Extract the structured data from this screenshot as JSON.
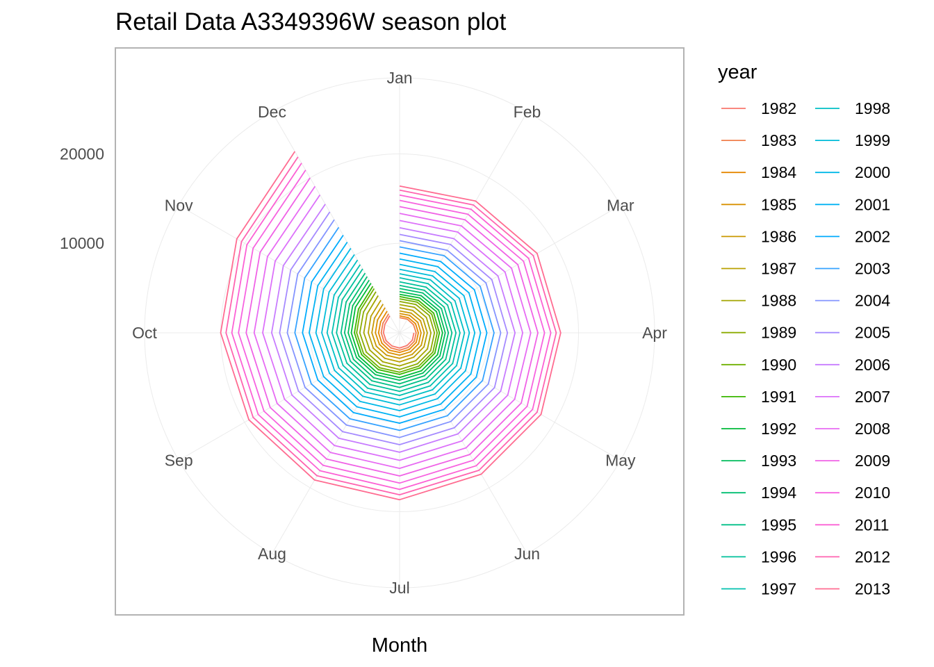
{
  "chart_data": {
    "type": "line",
    "coord": "polar",
    "title": "Retail Data A3349396W season plot",
    "xlabel": "Month",
    "ylabel": "",
    "categories": [
      "Jan",
      "Feb",
      "Mar",
      "Apr",
      "May",
      "Jun",
      "Jul",
      "Aug",
      "Sep",
      "Oct",
      "Nov",
      "Dec"
    ],
    "r_ticks": [
      10000,
      20000
    ],
    "r_tick_labels": [
      "10000",
      "20000"
    ],
    "rlim": [
      0,
      28500
    ],
    "grid": true,
    "legend": {
      "title": "year",
      "position": "right",
      "columns": 2
    },
    "series": [
      {
        "name": "1982",
        "color": "#F8766D",
        "values": [
          null,
          null,
          null,
          1600,
          1650,
          1650,
          1700,
          1700,
          1750,
          1800,
          1900,
          2200
        ]
      },
      {
        "name": "1983",
        "color": "#F07E4C",
        "values": [
          1700,
          1750,
          1800,
          1850,
          1900,
          1900,
          1950,
          1950,
          2000,
          2050,
          2150,
          2450
        ]
      },
      {
        "name": "1984",
        "color": "#E58700",
        "values": [
          1900,
          1950,
          2050,
          2100,
          2150,
          2150,
          2200,
          2250,
          2300,
          2350,
          2450,
          2800
        ]
      },
      {
        "name": "1985",
        "color": "#D89000",
        "values": [
          2150,
          2250,
          2350,
          2400,
          2450,
          2450,
          2500,
          2550,
          2600,
          2700,
          2850,
          3250
        ]
      },
      {
        "name": "1986",
        "color": "#C99800",
        "values": [
          2450,
          2550,
          2700,
          2750,
          2800,
          2800,
          2850,
          2900,
          3000,
          3100,
          3250,
          3700
        ]
      },
      {
        "name": "1987",
        "color": "#B9A000",
        "values": [
          2800,
          2900,
          3050,
          3100,
          3150,
          3150,
          3250,
          3300,
          3400,
          3500,
          3700,
          4200
        ]
      },
      {
        "name": "1988",
        "color": "#A3A500",
        "values": [
          3150,
          3300,
          3450,
          3500,
          3600,
          3600,
          3700,
          3750,
          3850,
          4000,
          4200,
          4800
        ]
      },
      {
        "name": "1989",
        "color": "#8BAB00",
        "values": [
          3500,
          3650,
          3850,
          3900,
          4000,
          4000,
          4100,
          4150,
          4300,
          4450,
          4650,
          5300
        ]
      },
      {
        "name": "1990",
        "color": "#6FB000",
        "values": [
          3800,
          3950,
          4150,
          4200,
          4300,
          4300,
          4400,
          4500,
          4650,
          4800,
          5050,
          5700
        ]
      },
      {
        "name": "1991",
        "color": "#39B600",
        "values": [
          4050,
          4200,
          4400,
          4450,
          4550,
          4550,
          4650,
          4750,
          4900,
          5050,
          5300,
          6000
        ]
      },
      {
        "name": "1992",
        "color": "#00BA38",
        "values": [
          4300,
          4500,
          4750,
          4800,
          4900,
          4900,
          5000,
          5100,
          5250,
          5400,
          5700,
          6400
        ]
      },
      {
        "name": "1993",
        "color": "#00BC5B",
        "values": [
          4600,
          4800,
          5050,
          5100,
          5200,
          5200,
          5300,
          5400,
          5550,
          5750,
          6050,
          6800
        ]
      },
      {
        "name": "1994",
        "color": "#00BE72",
        "values": [
          4950,
          5150,
          5400,
          5450,
          5550,
          5550,
          5700,
          5800,
          5950,
          6150,
          6450,
          7250
        ]
      },
      {
        "name": "1995",
        "color": "#00BF87",
        "values": [
          5300,
          5500,
          5750,
          5850,
          5950,
          5950,
          6100,
          6200,
          6350,
          6550,
          6900,
          7700
        ]
      },
      {
        "name": "1996",
        "color": "#00C09B",
        "values": [
          5700,
          5900,
          6200,
          6300,
          6400,
          6400,
          6550,
          6650,
          6800,
          7050,
          7400,
          8250
        ]
      },
      {
        "name": "1997",
        "color": "#00C0AF",
        "values": [
          6150,
          6350,
          6650,
          6750,
          6850,
          6850,
          7000,
          7150,
          7300,
          7550,
          7900,
          8800
        ]
      },
      {
        "name": "1998",
        "color": "#00BFC4",
        "values": [
          6600,
          6850,
          7150,
          7250,
          7350,
          7350,
          7500,
          7650,
          7850,
          8100,
          8450,
          9400
        ]
      },
      {
        "name": "1999",
        "color": "#00BCD8",
        "values": [
          7100,
          7350,
          7700,
          7800,
          7900,
          7900,
          8050,
          8200,
          8400,
          8700,
          9100,
          10100
        ]
      },
      {
        "name": "2000",
        "color": "#00B8E7",
        "values": [
          7650,
          7900,
          8300,
          8400,
          8500,
          8500,
          8700,
          8850,
          9050,
          9350,
          9800,
          10900
        ]
      },
      {
        "name": "2001",
        "color": "#00B2F3",
        "values": [
          8250,
          8550,
          8950,
          9050,
          9200,
          9200,
          9400,
          9550,
          9800,
          10100,
          10550,
          11700
        ]
      },
      {
        "name": "2002",
        "color": "#00ABFD",
        "values": [
          8900,
          9200,
          9650,
          9750,
          9900,
          9900,
          10100,
          10300,
          10550,
          10850,
          11350,
          12600
        ]
      },
      {
        "name": "2003",
        "color": "#35A2FF",
        "values": [
          9600,
          9950,
          10400,
          10550,
          10700,
          10700,
          10900,
          11100,
          11400,
          11700,
          12250,
          13600
        ]
      },
      {
        "name": "2004",
        "color": "#8494FF",
        "values": [
          10300,
          10650,
          11150,
          11300,
          11450,
          11450,
          11700,
          11900,
          12200,
          12550,
          13150,
          14600
        ]
      },
      {
        "name": "2005",
        "color": "#A58AFF",
        "values": [
          11000,
          11400,
          11900,
          12050,
          12250,
          12250,
          12500,
          12750,
          13050,
          13400,
          14050,
          15600
        ]
      },
      {
        "name": "2006",
        "color": "#C77CFF",
        "values": [
          11750,
          12150,
          12700,
          12900,
          13050,
          13050,
          13350,
          13600,
          13900,
          14300,
          15000,
          16600
        ]
      },
      {
        "name": "2007",
        "color": "#DC71FA",
        "values": [
          12550,
          13000,
          13600,
          13750,
          13950,
          13950,
          14250,
          14550,
          14850,
          15300,
          16050,
          17800
        ]
      },
      {
        "name": "2008",
        "color": "#E76BF3",
        "values": [
          13350,
          13800,
          14450,
          14650,
          14850,
          14850,
          15150,
          15450,
          15800,
          16250,
          17050,
          18900
        ]
      },
      {
        "name": "2009",
        "color": "#F062E6",
        "values": [
          14100,
          14600,
          15250,
          15450,
          15700,
          15700,
          16000,
          16300,
          16700,
          17150,
          18000,
          20000
        ]
      },
      {
        "name": "2010",
        "color": "#F763E0",
        "values": [
          14800,
          15300,
          16000,
          16200,
          16450,
          16450,
          16800,
          17100,
          17500,
          18000,
          18900,
          21000
        ]
      },
      {
        "name": "2011",
        "color": "#FC61D5",
        "values": [
          15400,
          15950,
          16650,
          16900,
          17150,
          17150,
          17500,
          17800,
          18250,
          18750,
          19700,
          21900
        ]
      },
      {
        "name": "2012",
        "color": "#FF64B0",
        "values": [
          15950,
          16500,
          17250,
          17500,
          17750,
          17750,
          18100,
          18450,
          18900,
          19400,
          20400,
          22700
        ]
      },
      {
        "name": "2013",
        "color": "#FF6C91",
        "values": [
          16400,
          17000,
          17750,
          18000,
          18250,
          18250,
          18650,
          19000,
          19450,
          20000,
          21000,
          23400
        ]
      }
    ]
  }
}
